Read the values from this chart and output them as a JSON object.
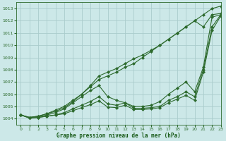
{
  "background_color": "#cce8e8",
  "grid_color": "#aacccc",
  "line_color": "#2d6a2d",
  "xlabel": "Graphe pression niveau de la mer (hPa)",
  "xlabel_color": "#1a5c1a",
  "ylim": [
    1003.5,
    1013.5
  ],
  "xlim": [
    -0.5,
    23
  ],
  "yticks": [
    1004,
    1005,
    1006,
    1007,
    1008,
    1009,
    1010,
    1011,
    1012,
    1013
  ],
  "xticks": [
    0,
    1,
    2,
    3,
    4,
    5,
    6,
    7,
    8,
    9,
    10,
    11,
    12,
    13,
    14,
    15,
    16,
    17,
    18,
    19,
    20,
    21,
    22,
    23
  ],
  "lines": [
    {
      "x": [
        0,
        1,
        2,
        3,
        4,
        5,
        6,
        7,
        8,
        9,
        10,
        11,
        12,
        13,
        14,
        15,
        16,
        17,
        18,
        19,
        20,
        21,
        22,
        23
      ],
      "y": [
        1004.3,
        1004.1,
        1004.2,
        1004.4,
        1004.6,
        1004.9,
        1005.4,
        1006.0,
        1006.7,
        1007.5,
        1007.8,
        1008.1,
        1008.5,
        1008.9,
        1009.2,
        1009.6,
        1010.0,
        1010.5,
        1011.0,
        1011.5,
        1012.0,
        1012.5,
        1013.0,
        1013.2
      ]
    },
    {
      "x": [
        0,
        1,
        2,
        3,
        4,
        5,
        6,
        7,
        8,
        9,
        10,
        11,
        12,
        13,
        14,
        15,
        16,
        17,
        18,
        19,
        20,
        21,
        22,
        23
      ],
      "y": [
        1004.3,
        1004.1,
        1004.2,
        1004.4,
        1004.7,
        1005.0,
        1005.5,
        1006.0,
        1006.6,
        1007.2,
        1007.5,
        1007.8,
        1008.2,
        1008.5,
        1009.0,
        1009.5,
        1010.0,
        1010.5,
        1011.0,
        1011.5,
        1012.0,
        1011.5,
        1012.5,
        1012.6
      ]
    },
    {
      "x": [
        0,
        1,
        2,
        3,
        4,
        5,
        6,
        7,
        8,
        9,
        10,
        11,
        12,
        13,
        14,
        15,
        16,
        17,
        18,
        19,
        20,
        21,
        22,
        23
      ],
      "y": [
        1004.3,
        1004.1,
        1004.15,
        1004.3,
        1004.5,
        1004.8,
        1005.3,
        1005.8,
        1006.3,
        1006.7,
        1005.8,
        1005.5,
        1005.3,
        1005.0,
        1005.0,
        1005.1,
        1005.4,
        1006.0,
        1006.5,
        1007.0,
        1006.2,
        1008.2,
        1012.3,
        1012.5
      ]
    },
    {
      "x": [
        0,
        1,
        2,
        3,
        4,
        5,
        6,
        7,
        8,
        9,
        10,
        11,
        12,
        13,
        14,
        15,
        16,
        17,
        18,
        19,
        20,
        21,
        22,
        23
      ],
      "y": [
        1004.3,
        1004.05,
        1004.1,
        1004.2,
        1004.3,
        1004.5,
        1004.8,
        1005.1,
        1005.4,
        1005.8,
        1005.2,
        1005.1,
        1005.3,
        1004.85,
        1004.85,
        1004.9,
        1005.0,
        1005.5,
        1005.8,
        1006.2,
        1005.8,
        1008.0,
        1011.5,
        1012.5
      ]
    },
    {
      "x": [
        0,
        1,
        2,
        3,
        4,
        5,
        6,
        7,
        8,
        9,
        10,
        11,
        12,
        13,
        14,
        15,
        16,
        17,
        18,
        19,
        20,
        21,
        22,
        23
      ],
      "y": [
        1004.3,
        1004.05,
        1004.1,
        1004.2,
        1004.3,
        1004.4,
        1004.65,
        1004.9,
        1005.15,
        1005.45,
        1004.95,
        1004.9,
        1005.1,
        1004.75,
        1004.75,
        1004.8,
        1004.9,
        1005.3,
        1005.6,
        1005.9,
        1005.5,
        1007.8,
        1011.2,
        1012.4
      ]
    }
  ]
}
